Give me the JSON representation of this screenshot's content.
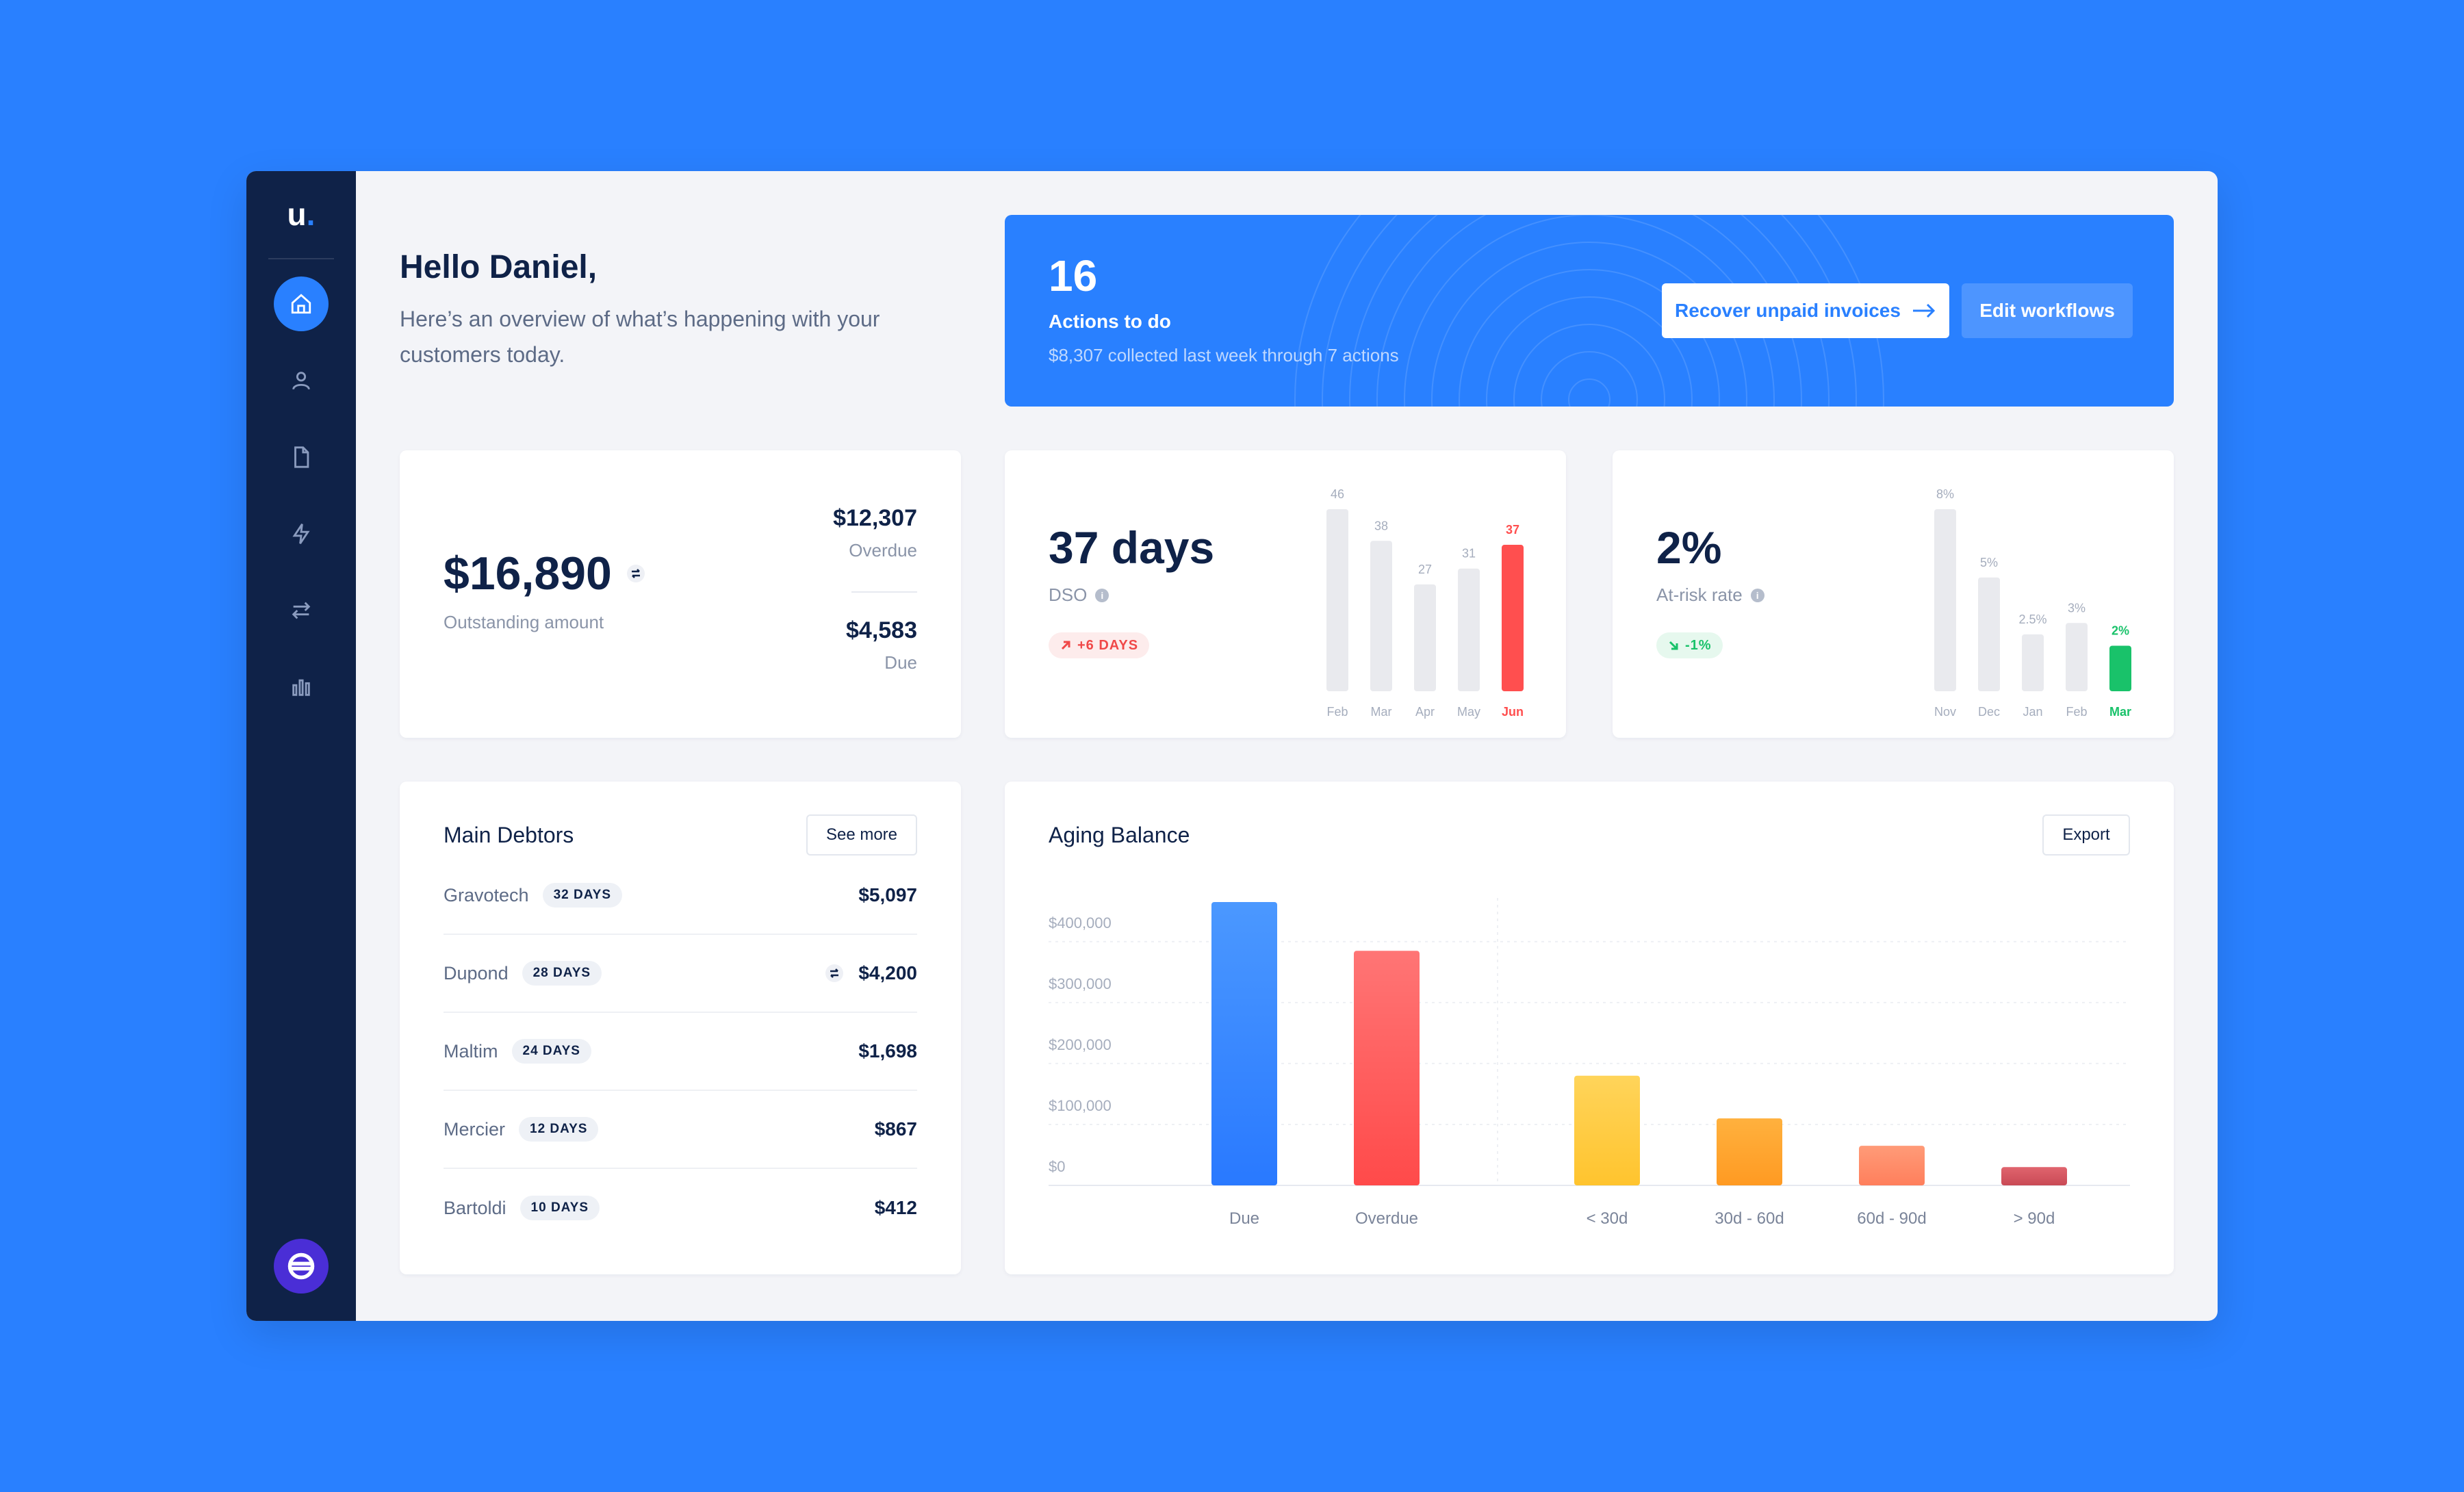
{
  "sidebar": {
    "logo_text": "u",
    "logo_dot": ".",
    "nav": [
      {
        "name": "home-icon",
        "active": true
      },
      {
        "name": "user-icon",
        "active": false
      },
      {
        "name": "document-icon",
        "active": false
      },
      {
        "name": "lightning-icon",
        "active": false
      },
      {
        "name": "transfer-icon",
        "active": false
      },
      {
        "name": "bar-chart-icon",
        "active": false
      }
    ],
    "workspace_icon": "globe-icon"
  },
  "greeting": {
    "title": "Hello Daniel,",
    "subtitle": "Here’s an overview of what’s happening with your customers today."
  },
  "actions_banner": {
    "count": "16",
    "label": "Actions to do",
    "sub": "$8,307 collected last week through 7 actions",
    "primary_button": "Recover unpaid invoices",
    "secondary_button": "Edit workflows"
  },
  "outstanding": {
    "amount": "$16,890",
    "label": "Outstanding amount",
    "overdue_value": "$12,307",
    "overdue_label": "Overdue",
    "due_value": "$4,583",
    "due_label": "Due"
  },
  "dso": {
    "value": "37 days",
    "label": "DSO",
    "trend": "+6 DAYS",
    "trend_color": "#F04848"
  },
  "at_risk": {
    "value": "2%",
    "label": "At-risk rate",
    "trend": "-1%",
    "trend_color": "#19C26A"
  },
  "debtors": {
    "title": "Main Debtors",
    "see_more": "See more",
    "rows": [
      {
        "name": "Gravotech",
        "days": "32 DAYS",
        "amount": "$5,097",
        "swap": false
      },
      {
        "name": "Dupond",
        "days": "28 DAYS",
        "amount": "$4,200",
        "swap": true
      },
      {
        "name": "Maltim",
        "days": "24 DAYS",
        "amount": "$1,698",
        "swap": false
      },
      {
        "name": "Mercier",
        "days": "12 DAYS",
        "amount": "$867",
        "swap": false
      },
      {
        "name": "Bartoldi",
        "days": "10 DAYS",
        "amount": "$412",
        "swap": false
      }
    ]
  },
  "aging": {
    "title": "Aging Balance",
    "export": "Export"
  },
  "chart_data": [
    {
      "type": "bar",
      "id": "dso-chart",
      "categories": [
        "Feb",
        "Mar",
        "Apr",
        "May",
        "Jun"
      ],
      "values": [
        46,
        38,
        27,
        31,
        37
      ],
      "value_labels": [
        "46",
        "38",
        "27",
        "31",
        "37"
      ],
      "highlight_index": 4,
      "highlight_color": "#FF4F4F",
      "base_color": "#E9EAEE"
    },
    {
      "type": "bar",
      "id": "risk-chart",
      "categories": [
        "Nov",
        "Dec",
        "Jan",
        "Feb",
        "Mar"
      ],
      "values": [
        8,
        5,
        2.5,
        3,
        2
      ],
      "value_labels": [
        "8%",
        "5%",
        "2.5%",
        "3%",
        "2%"
      ],
      "highlight_index": 4,
      "highlight_color": "#19C26A",
      "base_color": "#E9EAEE"
    },
    {
      "type": "bar",
      "id": "aging-chart",
      "title": "Aging Balance",
      "categories": [
        "Due",
        "Overdue",
        "< 30d",
        "30d - 60d",
        "60d - 90d",
        "> 90d"
      ],
      "values": [
        465000,
        385000,
        180000,
        110000,
        65000,
        30000
      ],
      "colors": [
        [
          "#4B98FF",
          "#2979FF"
        ],
        [
          "#FF7575",
          "#FF4A4A"
        ],
        [
          "#FFD45A",
          "#FFC42E"
        ],
        [
          "#FFB13E",
          "#FF9A22"
        ],
        [
          "#FF9B78",
          "#FF7F5C"
        ],
        [
          "#E0646E",
          "#C94A55"
        ]
      ],
      "yticks": [
        0,
        100000,
        200000,
        300000,
        400000
      ],
      "ytick_labels": [
        "$0",
        "$100,000",
        "$200,000",
        "$300,000",
        "$400,000"
      ],
      "ylim": [
        0,
        465000
      ],
      "grid": true
    }
  ]
}
